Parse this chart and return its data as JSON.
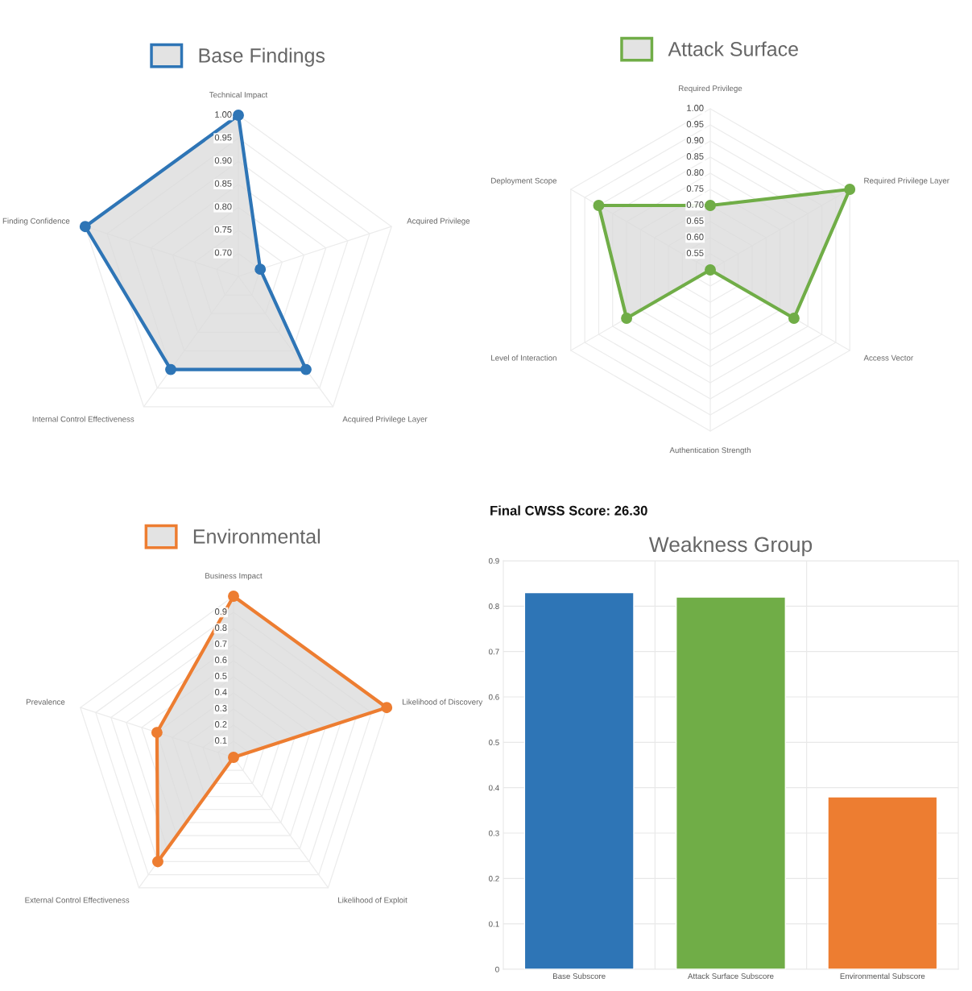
{
  "chart_data": [
    {
      "type": "radar",
      "categories": [
        "Technical Impact",
        "Acquired Privilege",
        "Acquired Privilege Layer",
        "Internal Control Effectiveness",
        "Finding Confidence"
      ],
      "series": [
        {
          "name": "Base Findings",
          "color": "#2e75b6",
          "values": [
            1.0,
            0.7,
            0.9,
            0.9,
            1.0
          ]
        }
      ],
      "ylim": [
        0.65,
        1.0
      ],
      "yticks": [
        {
          "value": 0.7,
          "label": "0.70"
        },
        {
          "value": 0.75,
          "label": "0.75"
        },
        {
          "value": 0.8,
          "label": "0.80"
        },
        {
          "value": 0.85,
          "label": "0.85"
        },
        {
          "value": 0.9,
          "label": "0.90"
        },
        {
          "value": 0.95,
          "label": "0.95"
        },
        {
          "value": 1.0,
          "label": "1.00"
        }
      ],
      "grid": true,
      "legend": "top",
      "marker": "circle"
    },
    {
      "type": "radar",
      "categories": [
        "Required Privilege",
        "Required Privilege Layer",
        "Access Vector",
        "Authentication Strength",
        "Level of Interaction",
        "Deployment Scope"
      ],
      "series": [
        {
          "name": "Attack Surface",
          "color": "#70ad47",
          "values": [
            0.7,
            1.0,
            0.8,
            0.5,
            0.8,
            0.9
          ]
        }
      ],
      "ylim": [
        0.5,
        1.0
      ],
      "yticks": [
        {
          "value": 0.55,
          "label": "0.55"
        },
        {
          "value": 0.6,
          "label": "0.60"
        },
        {
          "value": 0.65,
          "label": "0.65"
        },
        {
          "value": 0.7,
          "label": "0.70"
        },
        {
          "value": 0.75,
          "label": "0.75"
        },
        {
          "value": 0.8,
          "label": "0.80"
        },
        {
          "value": 0.85,
          "label": "0.85"
        },
        {
          "value": 0.9,
          "label": "0.90"
        },
        {
          "value": 0.95,
          "label": "0.95"
        },
        {
          "value": 1.0,
          "label": "1.00"
        }
      ],
      "grid": true,
      "legend": "top",
      "marker": "circle"
    },
    {
      "type": "radar",
      "categories": [
        "Business Impact",
        "Likelihood of Discovery",
        "Likelihood of Exploit",
        "External Control Effectiveness",
        "Prevalence"
      ],
      "series": [
        {
          "name": "Environmental",
          "color": "#ed7d31",
          "values": [
            1.0,
            1.0,
            0.0,
            0.8,
            0.5
          ]
        }
      ],
      "ylim": [
        0,
        1.0
      ],
      "yticks": [
        0.1,
        0.2,
        0.3,
        0.4,
        0.5,
        0.6,
        0.7,
        0.8,
        0.9
      ],
      "grid": true,
      "legend": "top",
      "marker": "circle"
    },
    {
      "type": "bar",
      "title": "Weakness Group",
      "annotations": [
        "Final CWSS Score: 26.30"
      ],
      "categories": [
        "Base Subscore",
        "Attack Surface Subscore",
        "Environmental Subscore"
      ],
      "values": [
        0.83,
        0.82,
        0.38
      ],
      "colors": [
        "#2e75b6",
        "#70ad47",
        "#ed7d31"
      ],
      "ylim": [
        0,
        0.9
      ],
      "yticks": [
        0,
        0.1,
        0.2,
        0.3,
        0.4,
        0.5,
        0.6,
        0.7,
        0.8,
        0.9
      ],
      "grid": true
    }
  ]
}
